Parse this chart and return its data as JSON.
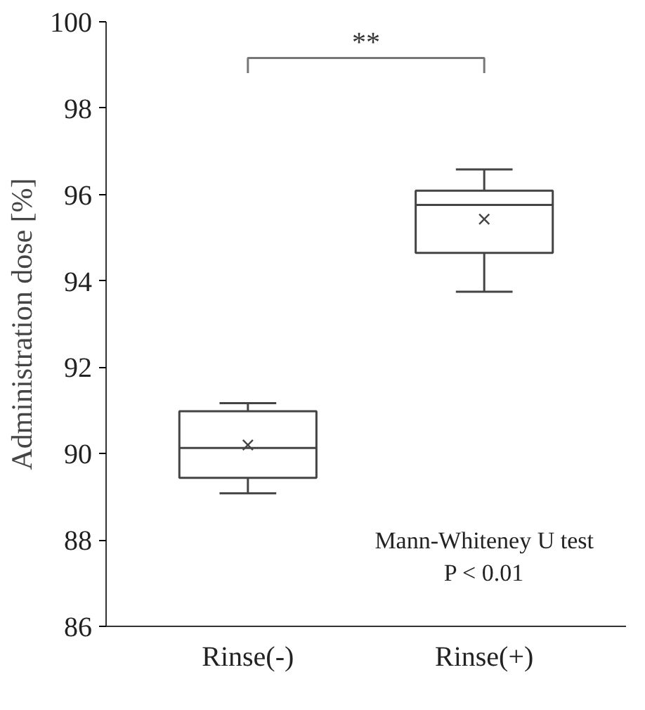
{
  "chart_data": {
    "type": "box",
    "ylabel": "Administration dose [%]",
    "categories": [
      "Rinse(-)",
      "Rinse(+)"
    ],
    "boxes": [
      {
        "low": 89.08,
        "q1": 89.44,
        "median": 90.13,
        "q3": 90.98,
        "high": 91.17,
        "mean": 90.2
      },
      {
        "low": 93.75,
        "q1": 94.65,
        "median": 95.76,
        "q3": 96.09,
        "high": 96.58,
        "mean": 95.43
      }
    ],
    "ylim": [
      86,
      100
    ],
    "yticks": [
      86,
      88,
      90,
      92,
      94,
      96,
      98,
      100
    ],
    "grid": false,
    "annotations": [
      "**",
      "Mann-Whiteney U test\nP < 0.01"
    ]
  }
}
